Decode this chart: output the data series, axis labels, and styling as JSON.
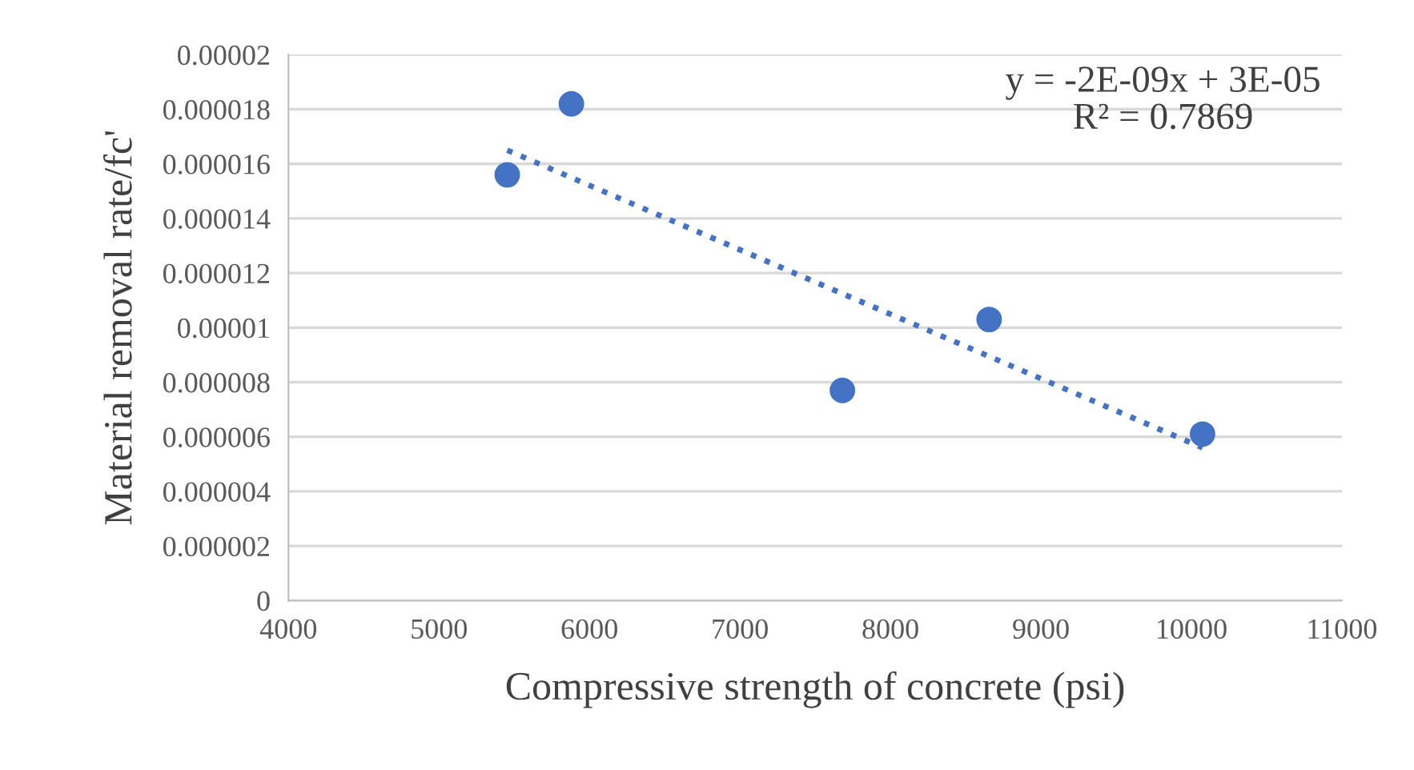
{
  "chart_data": {
    "type": "scatter",
    "xlabel": "Compressive strength of concrete (psi)",
    "ylabel": "Material removal rate/fc'",
    "series": [
      {
        "color": "#4472c4",
        "marker": "circle",
        "x": [
          5454,
          5880,
          7681,
          8656,
          10074
        ],
        "values": [
          1.56e-05,
          1.82e-05,
          7.7e-06,
          1.03e-05,
          6.1e-06
        ]
      },
      {
        "type": "line",
        "color": "#4472c4",
        "line_style": "dotted",
        "marker": "none",
        "x": [
          5454,
          10074
        ],
        "values": [
          1.65e-05,
          5.6e-06
        ]
      }
    ],
    "xlim": [
      4000,
      11000
    ],
    "xticks": [
      4000,
      5000,
      6000,
      7000,
      8000,
      9000,
      10000,
      11000
    ],
    "ylim": [
      0,
      2e-05
    ],
    "yticks": [
      {
        "value": 0,
        "label": "0"
      },
      {
        "value": 2e-06,
        "label": "0.000002"
      },
      {
        "value": 4e-06,
        "label": "0.000004"
      },
      {
        "value": 6e-06,
        "label": "0.000006"
      },
      {
        "value": 8e-06,
        "label": "0.000008"
      },
      {
        "value": 1e-05,
        "label": "0.00001"
      },
      {
        "value": 1.2e-05,
        "label": "0.000012"
      },
      {
        "value": 1.4e-05,
        "label": "0.000014"
      },
      {
        "value": 1.6e-05,
        "label": "0.000016"
      },
      {
        "value": 1.8e-05,
        "label": "0.000018"
      },
      {
        "value": 2e-05,
        "label": "0.00002"
      }
    ],
    "grid": "y",
    "annotations": [
      "y = -2E-09x + 3E-05\nR² = 0.7869"
    ]
  }
}
